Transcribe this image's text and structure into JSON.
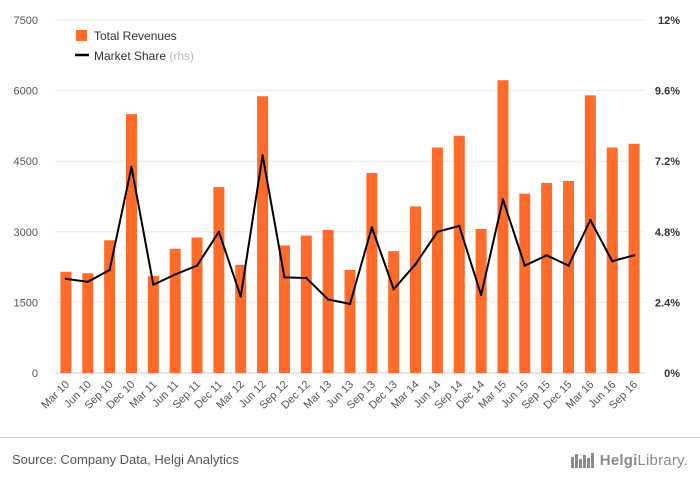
{
  "chart_data": {
    "type": "bar+line",
    "categories": [
      "Mar 10",
      "Jun 10",
      "Sep 10",
      "Dec 10",
      "Mar 11",
      "Jun 11",
      "Sep 11",
      "Dec 11",
      "Mar 12",
      "Jun 12",
      "Sep 12",
      "Dec 12",
      "Mar 13",
      "Jun 13",
      "Sep 13",
      "Dec 13",
      "Mar 14",
      "Jun 14",
      "Sep 14",
      "Dec 14",
      "Mar 15",
      "Jun 15",
      "Sep 15",
      "Dec 15",
      "Mar 16",
      "Jun 16",
      "Sep 16"
    ],
    "series": [
      {
        "name": "Total Revenues",
        "type": "bar",
        "axis": "left",
        "color": "#ff6b2b",
        "values": [
          2150,
          2120,
          2820,
          5500,
          2060,
          2640,
          2880,
          3950,
          2300,
          5880,
          2710,
          2920,
          3040,
          2190,
          4250,
          2590,
          3540,
          4790,
          5040,
          3060,
          6220,
          3810,
          4040,
          4080,
          5900,
          4790,
          4870
        ]
      },
      {
        "name": "Market Share",
        "type": "line",
        "axis": "right",
        "color": "#000000",
        "values": [
          3.2,
          3.1,
          3.5,
          7.0,
          3.0,
          3.35,
          3.65,
          4.8,
          2.6,
          7.4,
          3.25,
          3.23,
          2.5,
          2.35,
          4.95,
          2.85,
          3.7,
          4.8,
          5.0,
          2.65,
          5.9,
          3.65,
          4.0,
          3.65,
          5.2,
          3.8,
          4.0
        ]
      }
    ],
    "y_left": {
      "ticks": [
        "0",
        "1500",
        "3000",
        "4500",
        "6000",
        "7500"
      ],
      "min": 0,
      "max": 7500
    },
    "y_right": {
      "ticks": [
        "0%",
        "2.4%",
        "4.8%",
        "7.2%",
        "9.6%",
        "12%"
      ],
      "min": 0,
      "max": 12
    },
    "legend": {
      "position": "top-left",
      "items": [
        {
          "label": "Total Revenues",
          "suffix": "",
          "swatch": "bar"
        },
        {
          "label": "Market Share",
          "suffix": "(rhs)",
          "swatch": "line"
        }
      ]
    },
    "grid": true
  },
  "footer": {
    "source": "Source: Company Data, Helgi Analytics",
    "logo_text_bold": "Helgi",
    "logo_text": "Library."
  }
}
